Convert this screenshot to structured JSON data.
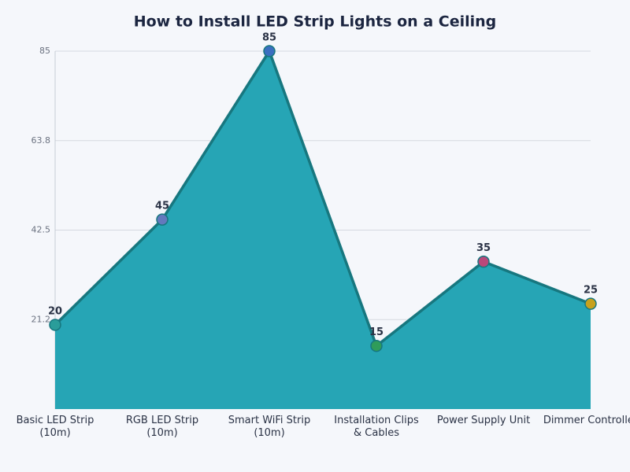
{
  "chart_data": {
    "type": "area",
    "title": "How to Install LED Strip Lights on a Ceiling",
    "categories": [
      "Basic LED Strip (10m)",
      "RGB LED Strip (10m)",
      "Smart WiFi Strip (10m)",
      "Installation Clips & Cables",
      "Power Supply Unit",
      "Dimmer Controller"
    ],
    "series": [
      {
        "values": [
          20,
          45,
          85,
          15,
          35,
          25
        ],
        "color": "#26a5b5",
        "line_color": "#17777f",
        "point_colors": [
          "#2a9d9a",
          "#6379bd",
          "#3b6fc0",
          "#2f9c5a",
          "#b9487a",
          "#c7a11c"
        ]
      }
    ],
    "ylim": [
      0,
      85
    ],
    "yticks": [
      {
        "value": 21.25,
        "label": "21.2"
      },
      42.5,
      {
        "value": 63.75,
        "label": "63.8"
      },
      85
    ],
    "grid": true
  }
}
